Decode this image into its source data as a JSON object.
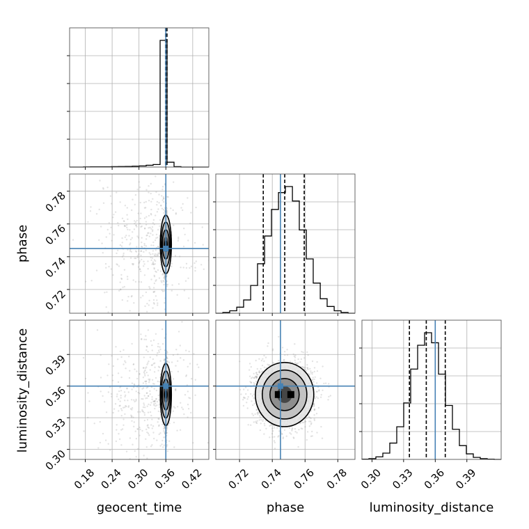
{
  "chart_data": {
    "type": "corner",
    "parameters": [
      "geocent_time",
      "phase",
      "luminosity_distance"
    ],
    "axis_labels": {
      "x": [
        "geocent_time",
        "phase",
        "luminosity_distance"
      ],
      "y": [
        "phase",
        "luminosity_distance"
      ]
    },
    "truths": {
      "geocent_time": 0.36,
      "phase": 0.745,
      "luminosity_distance": 0.36
    },
    "colors": {
      "truth": "#4682b4",
      "hist": "#000000",
      "samples": "#9a9a9a",
      "grid": "#b0b0b0"
    },
    "grid": true,
    "ranges": {
      "geocent_time": [
        0.145,
        0.456
      ],
      "phase": [
        0.7055,
        0.7905
      ],
      "luminosity_distance": [
        0.2905,
        0.4225
      ]
    },
    "ticks": {
      "geocent_time": {
        "values": [
          0.18,
          0.24,
          0.3,
          0.36,
          0.42
        ],
        "labels": [
          "0.18",
          "0.24",
          "0.30",
          "0.36",
          "0.42"
        ]
      },
      "phase_x": {
        "values": [
          0.72,
          0.74,
          0.76,
          0.78
        ],
        "labels": [
          "0.72",
          "0.74",
          "0.76",
          "0.78"
        ]
      },
      "phase_y": {
        "values": [
          0.72,
          0.74,
          0.76,
          0.78
        ],
        "labels": [
          "0.72",
          "0.74",
          "0.76",
          "0.78"
        ]
      },
      "luminosity_distance_x": {
        "values": [
          0.3,
          0.33,
          0.36,
          0.39
        ],
        "labels": [
          "0.30",
          "0.33",
          "0.36",
          "0.39"
        ]
      },
      "luminosity_distance_y": {
        "values": [
          0.3,
          0.33,
          0.36,
          0.39
        ],
        "labels": [
          "0.30",
          "0.33",
          "0.36",
          "0.39"
        ]
      }
    },
    "histograms": {
      "geocent_time": {
        "bin_edges": [
          0.145,
          0.1606,
          0.1761,
          0.1917,
          0.2072,
          0.2228,
          0.2383,
          0.2539,
          0.2694,
          0.285,
          0.3005,
          0.3161,
          0.3316,
          0.3472,
          0.3627,
          0.3783,
          0.3938,
          0.4094,
          0.4249,
          0.4405,
          0.456
        ],
        "counts": [
          0,
          0,
          1,
          2,
          2,
          2,
          3,
          4,
          5,
          7,
          9,
          14,
          20,
          1000,
          38,
          3,
          0,
          0,
          0,
          0
        ],
        "quantile_lines": [
          0.3595,
          0.361,
          0.3625
        ]
      },
      "phase": {
        "bin_edges": [
          0.7055,
          0.7098,
          0.714,
          0.7183,
          0.7225,
          0.7268,
          0.731,
          0.7353,
          0.7395,
          0.7438,
          0.748,
          0.7523,
          0.7565,
          0.7608,
          0.765,
          0.7693,
          0.7735,
          0.7778,
          0.782,
          0.7863,
          0.7905
        ],
        "counts": [
          0,
          3,
          10,
          25,
          55,
          115,
          205,
          320,
          430,
          500,
          525,
          465,
          345,
          225,
          125,
          60,
          28,
          10,
          3,
          0
        ],
        "quantile_lines": [
          0.7345,
          0.7476,
          0.7595
        ]
      },
      "luminosity_distance": {
        "bin_edges": [
          0.2905,
          0.2971,
          0.3037,
          0.3103,
          0.3169,
          0.3235,
          0.3301,
          0.3367,
          0.3433,
          0.3499,
          0.3565,
          0.3631,
          0.3697,
          0.3763,
          0.3829,
          0.3895,
          0.3961,
          0.4027,
          0.4093,
          0.4159,
          0.4225
        ],
        "counts": [
          1,
          3,
          10,
          25,
          65,
          130,
          225,
          360,
          455,
          505,
          465,
          340,
          215,
          120,
          55,
          22,
          8,
          3,
          1,
          0
        ],
        "quantile_lines": [
          0.3355,
          0.3515,
          0.3695
        ]
      }
    },
    "joint_2d": {
      "phase_vs_geocent_time": {
        "center": [
          0.36,
          0.7475
        ],
        "std": [
          0.002,
          0.0085
        ],
        "outlier_spread": [
          0.07,
          0.02
        ]
      },
      "luminosity_distance_vs_geocent_time": {
        "center": [
          0.36,
          0.352
        ],
        "std": [
          0.002,
          0.014
        ],
        "outlier_spread": [
          0.07,
          0.03
        ]
      },
      "luminosity_distance_vs_phase": {
        "center": [
          0.7475,
          0.352
        ],
        "std": [
          0.0085,
          0.0145
        ],
        "outlier_spread": [
          0.0,
          0.0
        ]
      }
    }
  }
}
